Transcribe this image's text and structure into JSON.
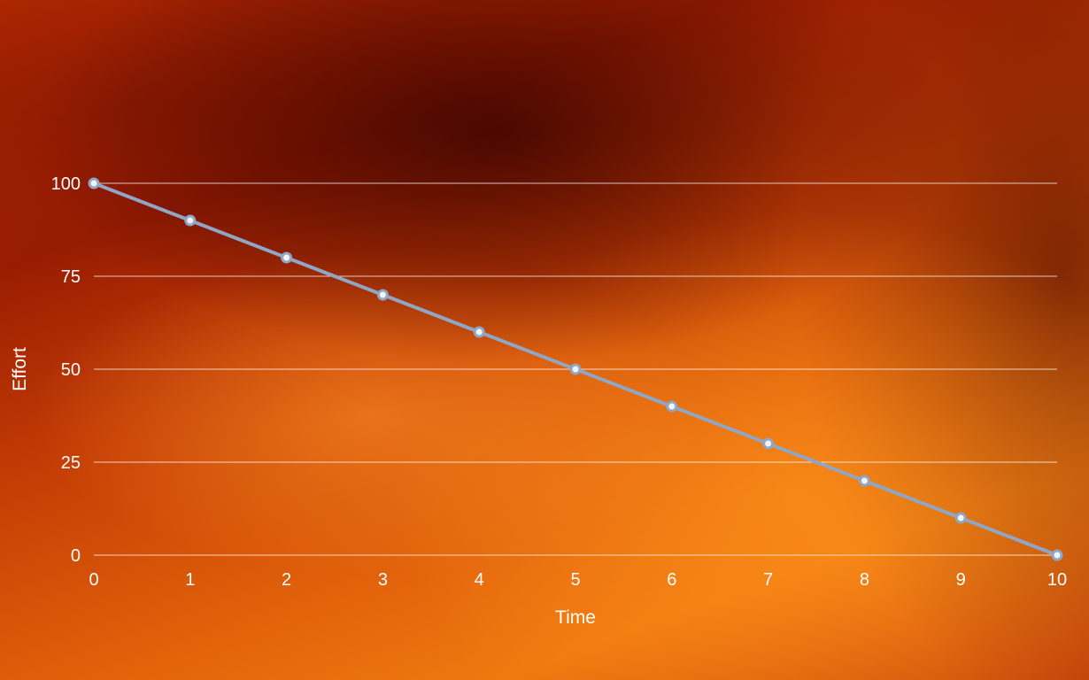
{
  "chart_data": {
    "type": "line",
    "title": "",
    "xlabel": "Time",
    "ylabel": "Effort",
    "x": [
      0,
      1,
      2,
      3,
      4,
      5,
      6,
      7,
      8,
      9,
      10
    ],
    "series": [
      {
        "values": [
          100,
          90,
          80,
          70,
          60,
          50,
          40,
          30,
          20,
          10,
          0
        ]
      }
    ],
    "xlim": [
      0,
      10
    ],
    "ylim": [
      0,
      100
    ],
    "yticks": [
      0,
      25,
      50,
      75,
      100
    ],
    "xticks": [
      0,
      1,
      2,
      3,
      4,
      5,
      6,
      7,
      8,
      9,
      10
    ],
    "grid": "horizontal",
    "legend": "none",
    "colors": {
      "line": "#8fa6c4",
      "marker_fill": "#f5f5f5",
      "text": "#ffffff"
    }
  }
}
